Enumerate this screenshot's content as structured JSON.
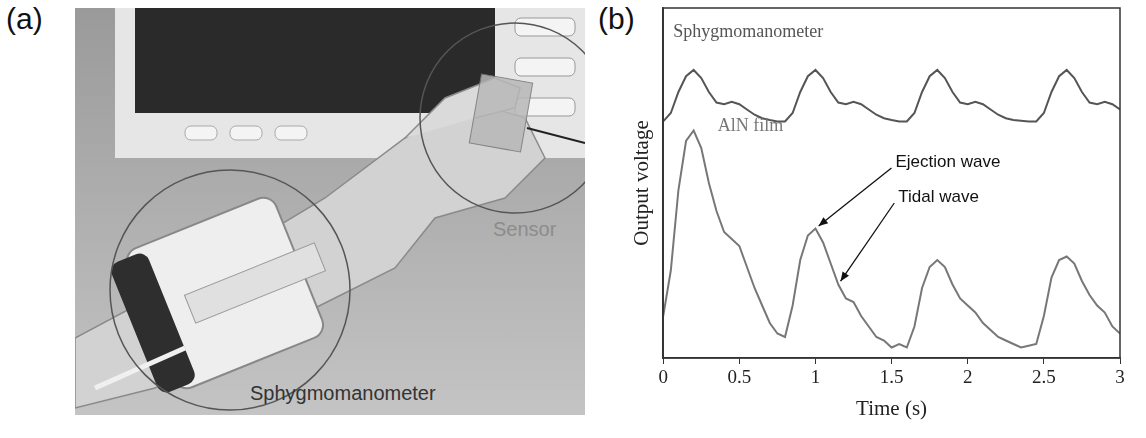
{
  "photo": {
    "panel_label": "(a)",
    "labels": {
      "sensor": "Sensor",
      "cuff": "Sphygmomanometer"
    }
  },
  "chart_data": {
    "type": "line",
    "panel_label": "(b)",
    "x_label": "Time (s)",
    "y_label": "Output voltage",
    "xlim": [
      0,
      3
    ],
    "xticks": [
      0,
      0.5,
      1,
      1.5,
      2,
      2.5,
      3
    ],
    "ylim": [
      0,
      10
    ],
    "yticks": [],
    "grid": false,
    "tick_labels": "x",
    "x": [
      0,
      0.05,
      0.1,
      0.15,
      0.2,
      0.25,
      0.3,
      0.35,
      0.4,
      0.45,
      0.5,
      0.55,
      0.6,
      0.65,
      0.7,
      0.75,
      0.8,
      0.85,
      0.9,
      0.95,
      1,
      1.05,
      1.1,
      1.15,
      1.2,
      1.25,
      1.3,
      1.35,
      1.4,
      1.45,
      1.5,
      1.55,
      1.6,
      1.65,
      1.7,
      1.75,
      1.8,
      1.85,
      1.9,
      1.95,
      2,
      2.05,
      2.1,
      2.15,
      2.2,
      2.25,
      2.3,
      2.35,
      2.4,
      2.45,
      2.5,
      2.55,
      2.6,
      2.65,
      2.7,
      2.75,
      2.8,
      2.85,
      2.9,
      2.95,
      3
    ],
    "series": [
      {
        "name": "Sphygmomanometer",
        "color": "#555555",
        "values": [
          6.76,
          7.0,
          7.6,
          8.05,
          8.23,
          8.0,
          7.6,
          7.3,
          7.25,
          7.32,
          7.25,
          7.1,
          6.95,
          6.85,
          6.8,
          6.76,
          6.76,
          7.0,
          7.6,
          8.05,
          8.23,
          8.0,
          7.6,
          7.3,
          7.25,
          7.32,
          7.25,
          7.1,
          6.95,
          6.85,
          6.8,
          6.76,
          6.76,
          7.0,
          7.6,
          8.05,
          8.23,
          8.0,
          7.6,
          7.3,
          7.25,
          7.32,
          7.25,
          7.1,
          6.95,
          6.85,
          6.8,
          6.78,
          6.76,
          6.76,
          7.0,
          7.6,
          8.05,
          8.23,
          8.0,
          7.6,
          7.3,
          7.25,
          7.32,
          7.25,
          7.1
        ]
      },
      {
        "name": "AlN film",
        "color": "#777777",
        "values": [
          1.2,
          2.5,
          4.8,
          6.2,
          6.5,
          6.0,
          5.0,
          4.2,
          3.6,
          3.4,
          3.2,
          2.6,
          2.0,
          1.5,
          1.0,
          0.7,
          0.6,
          1.5,
          2.8,
          3.5,
          3.7,
          3.3,
          2.7,
          2.1,
          1.7,
          1.6,
          1.2,
          0.9,
          0.6,
          0.5,
          0.3,
          0.4,
          0.3,
          0.9,
          2.0,
          2.6,
          2.8,
          2.6,
          2.1,
          1.7,
          1.5,
          1.3,
          1.0,
          0.8,
          0.6,
          0.5,
          0.4,
          0.3,
          0.35,
          0.4,
          1.2,
          2.3,
          2.8,
          2.9,
          2.7,
          2.2,
          1.8,
          1.5,
          1.3,
          0.9,
          0.7
        ]
      }
    ],
    "annotations": [
      {
        "text": "Ejection wave",
        "x": 1.0,
        "y": 3.7
      },
      {
        "text": "Tidal wave",
        "x": 1.15,
        "y": 2.1
      }
    ]
  }
}
